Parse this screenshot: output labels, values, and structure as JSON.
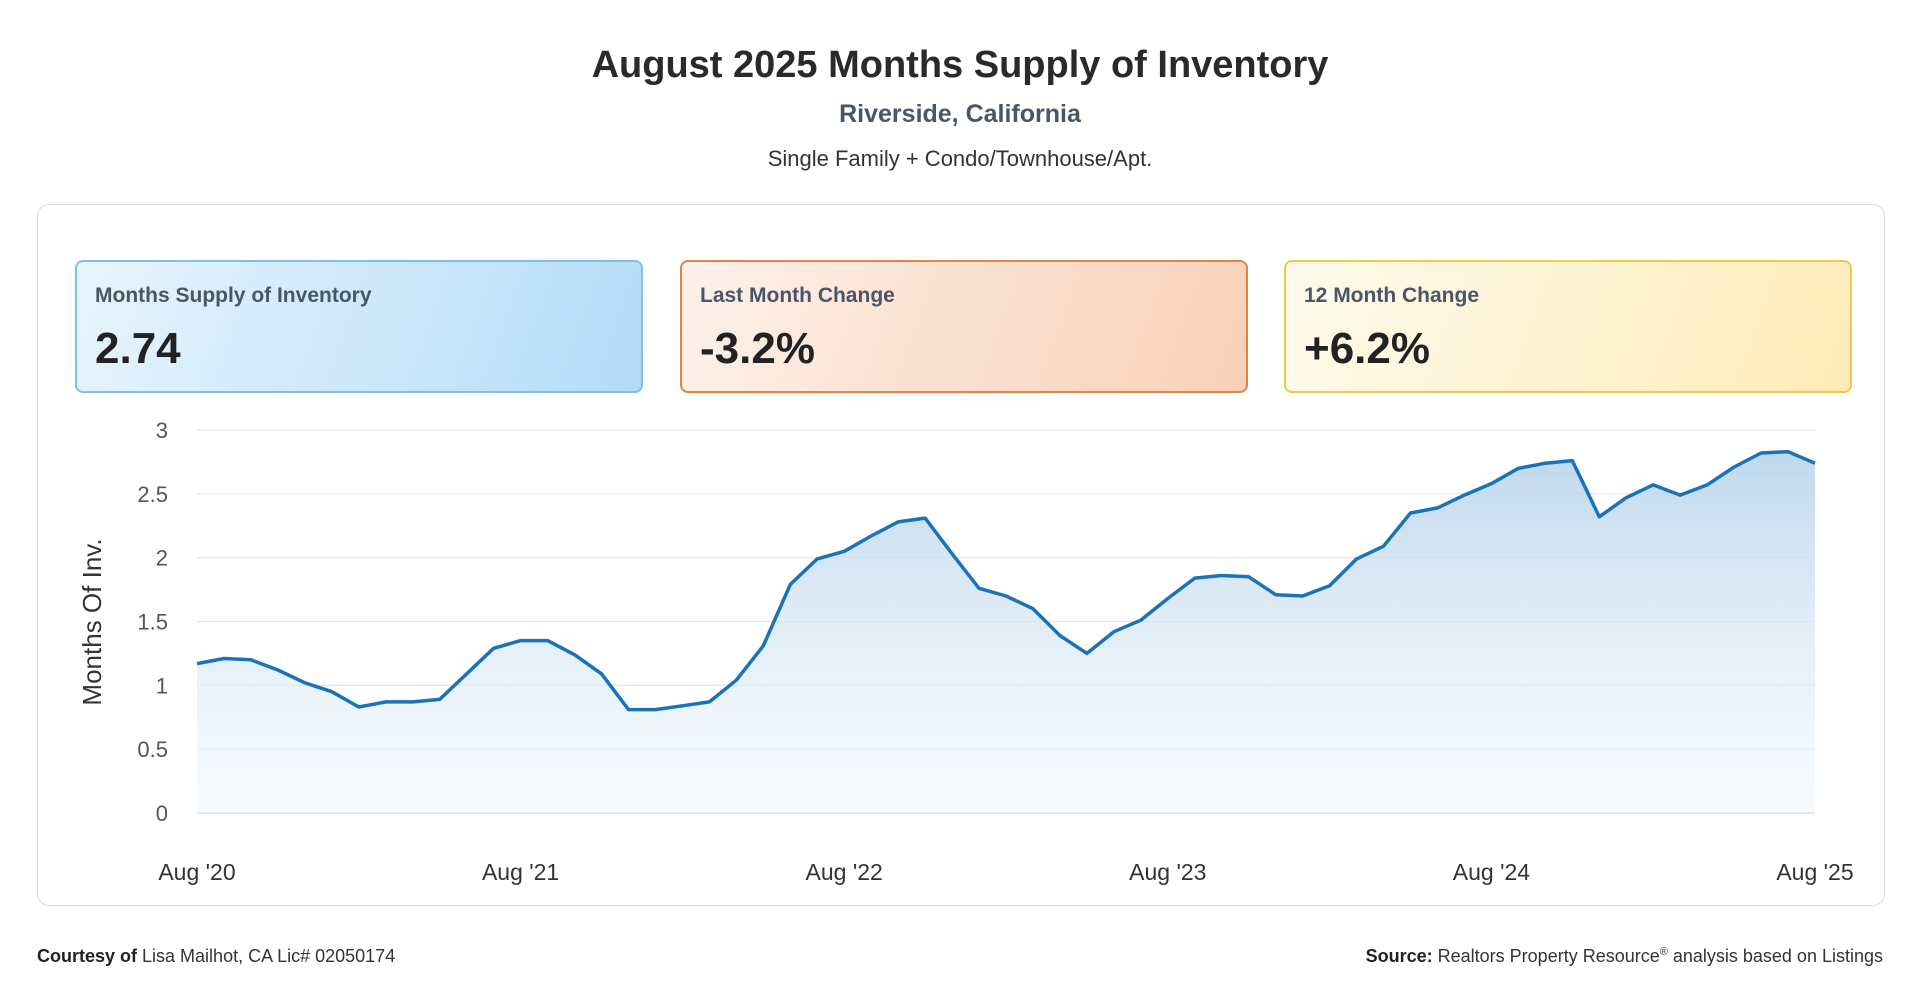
{
  "header": {
    "title": "August 2025 Months Supply of Inventory",
    "subtitle": "Riverside, California",
    "property_types": "Single Family + Condo/Townhouse/Apt."
  },
  "cards": {
    "msi": {
      "label": "Months Supply of Inventory",
      "value": "2.74",
      "border_color": "#7cc1ec"
    },
    "last_month": {
      "label": "Last Month Change",
      "value": "-3.2%",
      "border_color": "#e08448"
    },
    "twelve_month": {
      "label": "12 Month Change",
      "value": "+6.2%",
      "border_color": "#f1c945"
    }
  },
  "chart_data": {
    "type": "area",
    "title": "",
    "xlabel": "",
    "ylabel": "Months Of Inv.",
    "ylim": [
      0,
      3
    ],
    "yticks": [
      "0",
      "0.5",
      "1",
      "1.5",
      "2",
      "2.5",
      "3"
    ],
    "xtick_labels": [
      "Aug '20",
      "Aug '21",
      "Aug '22",
      "Aug '23",
      "Aug '24",
      "Aug '25"
    ],
    "grid": true,
    "line_color": "#1a73b8",
    "fill_color": "#bcd6ec",
    "x": [
      "2020-08",
      "2020-09",
      "2020-10",
      "2020-11",
      "2020-12",
      "2021-01",
      "2021-02",
      "2021-03",
      "2021-04",
      "2021-05",
      "2021-06",
      "2021-07",
      "2021-08",
      "2021-09",
      "2021-10",
      "2021-11",
      "2021-12",
      "2022-01",
      "2022-02",
      "2022-03",
      "2022-04",
      "2022-05",
      "2022-06",
      "2022-07",
      "2022-08",
      "2022-09",
      "2022-10",
      "2022-11",
      "2022-12",
      "2023-01",
      "2023-02",
      "2023-03",
      "2023-04",
      "2023-05",
      "2023-06",
      "2023-07",
      "2023-08",
      "2023-09",
      "2023-10",
      "2023-11",
      "2023-12",
      "2024-01",
      "2024-02",
      "2024-03",
      "2024-04",
      "2024-05",
      "2024-06",
      "2024-07",
      "2024-08",
      "2024-09",
      "2024-10",
      "2024-11",
      "2024-12",
      "2025-01",
      "2025-02",
      "2025-03",
      "2025-04",
      "2025-05",
      "2025-06",
      "2025-07",
      "2025-08"
    ],
    "values": [
      1.17,
      1.21,
      1.2,
      1.12,
      1.02,
      0.95,
      0.83,
      0.87,
      0.87,
      0.89,
      1.09,
      1.29,
      1.35,
      1.35,
      1.24,
      1.09,
      0.81,
      0.81,
      0.84,
      0.87,
      1.04,
      1.31,
      1.79,
      1.99,
      2.05,
      2.17,
      2.28,
      2.31,
      2.03,
      1.76,
      1.7,
      1.6,
      1.39,
      1.25,
      1.42,
      1.51,
      1.68,
      1.84,
      1.86,
      1.85,
      1.71,
      1.7,
      1.78,
      1.99,
      2.09,
      2.35,
      2.39,
      2.49,
      2.58,
      2.7,
      2.74,
      2.76,
      2.32,
      2.47,
      2.57,
      2.49,
      2.57,
      2.71,
      2.82,
      2.83,
      2.74
    ]
  },
  "footer": {
    "courtesy_label": "Courtesy of",
    "courtesy_text": "Lisa Mailhot, CA Lic# 02050174",
    "source_label": "Source:",
    "source_text": "Realtors Property Resource",
    "source_mark": "®",
    "source_suffix": "analysis based on Listings"
  }
}
